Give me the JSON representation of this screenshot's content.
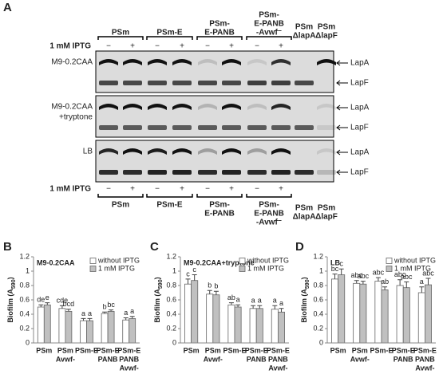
{
  "panel_a": {
    "label": "A",
    "groups_top": [
      [
        "PSm"
      ],
      [
        "PSm-E"
      ],
      [
        "PSm-",
        "E-PANB"
      ],
      [
        "PSm-",
        "E-PANB",
        "-Avwf⁻"
      ],
      [
        "PSm",
        "ΔlapA"
      ],
      [
        "PSm",
        "ΔlapF"
      ]
    ],
    "iptg_top": "1 mM IPTG",
    "signs_top": [
      "−",
      "+",
      "−",
      "+",
      "−",
      "+",
      "−",
      "+"
    ],
    "rows": [
      [
        "M9-0.2CAA"
      ],
      [
        "M9-0.2CAA",
        "+tryptone"
      ],
      [
        "LB"
      ]
    ],
    "bands": [
      "LapA",
      "LapF"
    ],
    "iptg_bottom": "1 mM IPTG",
    "signs_bottom": [
      "−",
      "+",
      "−",
      "+",
      "−",
      "+",
      "−",
      "+"
    ],
    "groups_bottom": [
      [
        "PSm"
      ],
      [
        "PSm-E"
      ],
      [
        "PSm-",
        "E-PANB"
      ],
      [
        "PSm-",
        "E-PANB",
        "-Avwf⁻"
      ],
      [
        "PSm",
        "ΔlapA"
      ],
      [
        "PSm",
        "ΔlapF"
      ]
    ]
  },
  "chart_data": [
    {
      "type": "bar",
      "panel": "B",
      "title": "M9-0.2CAA",
      "y_label": [
        "Biofilm (A",
        "590",
        ")"
      ],
      "categories": [
        [
          "PSm"
        ],
        [
          "PSm",
          "Avwf-"
        ],
        [
          "PSm-E"
        ],
        [
          "PSm-E",
          "PANB"
        ],
        [
          "PSm-E",
          "PANB",
          "Avwf-"
        ]
      ],
      "series": [
        {
          "name": "without IPTG",
          "color": "#ffffff",
          "values": [
            0.5,
            0.48,
            0.31,
            0.41,
            0.32
          ],
          "errors": [
            0.03,
            0.04,
            0.03,
            0.02,
            0.03
          ],
          "letters": [
            "de",
            "cde",
            "a",
            "b",
            "a"
          ]
        },
        {
          "name": "1 mM IPTG",
          "color": "#c0c0c0",
          "values": [
            0.53,
            0.44,
            0.31,
            0.44,
            0.34
          ],
          "errors": [
            0.03,
            0.03,
            0.03,
            0.02,
            0.03
          ],
          "letters": [
            "e",
            "bcd",
            "a",
            "bc",
            "a"
          ]
        }
      ],
      "ylim": [
        0,
        1.2
      ],
      "yticks": [
        0,
        0.2,
        0.4,
        0.6,
        0.8,
        1,
        1.2
      ]
    },
    {
      "type": "bar",
      "panel": "C",
      "title": "M9-0.2CAA+tryptone",
      "y_label": [
        "Biofilm (A",
        "590",
        ")"
      ],
      "categories": [
        [
          "PSm"
        ],
        [
          "PSm",
          "Avwf-"
        ],
        [
          "PSm-E"
        ],
        [
          "PSm-E",
          "PANB"
        ],
        [
          "PSm-E",
          "PANB",
          "Avwf-"
        ]
      ],
      "series": [
        {
          "name": "without IPTG",
          "color": "#ffffff",
          "values": [
            0.82,
            0.68,
            0.53,
            0.48,
            0.47
          ],
          "errors": [
            0.07,
            0.05,
            0.03,
            0.04,
            0.05
          ],
          "letters": [
            "c",
            "b",
            "ab",
            "a",
            "a"
          ]
        },
        {
          "name": "1 mM IPTG",
          "color": "#c0c0c0",
          "values": [
            0.87,
            0.67,
            0.5,
            0.48,
            0.43
          ],
          "errors": [
            0.08,
            0.05,
            0.03,
            0.04,
            0.05
          ],
          "letters": [
            "c",
            "b",
            "a",
            "a",
            "a"
          ]
        }
      ],
      "ylim": [
        0,
        1.2
      ],
      "yticks": [
        0,
        0.2,
        0.4,
        0.6,
        0.8,
        1,
        1.2
      ]
    },
    {
      "type": "bar",
      "panel": "D",
      "title": "LB",
      "y_label": [
        "Biofilm (A",
        "590",
        ")"
      ],
      "categories": [
        [
          "PSm"
        ],
        [
          "PSm",
          "Avwf-"
        ],
        [
          "PSm-E"
        ],
        [
          "PSm-E",
          "PANB"
        ],
        [
          "PSm-E",
          "PANB",
          "Avwf-"
        ]
      ],
      "series": [
        {
          "name": "without IPTG",
          "color": "#ffffff",
          "values": [
            0.89,
            0.83,
            0.86,
            0.8,
            0.7
          ],
          "errors": [
            0.07,
            0.04,
            0.05,
            0.08,
            0.08
          ],
          "letters": [
            "bc",
            "abc",
            "abc",
            "abc",
            "a"
          ]
        },
        {
          "name": "1 mM IPTG",
          "color": "#c0c0c0",
          "values": [
            0.95,
            0.82,
            0.74,
            0.77,
            0.81
          ],
          "errors": [
            0.08,
            0.04,
            0.04,
            0.08,
            0.09
          ],
          "letters": [
            "c",
            "abc",
            "ab",
            "abc",
            "abc"
          ]
        }
      ],
      "ylim": [
        0,
        1.2
      ],
      "yticks": [
        0,
        0.2,
        0.4,
        0.6,
        0.8,
        1,
        1.2
      ]
    }
  ]
}
